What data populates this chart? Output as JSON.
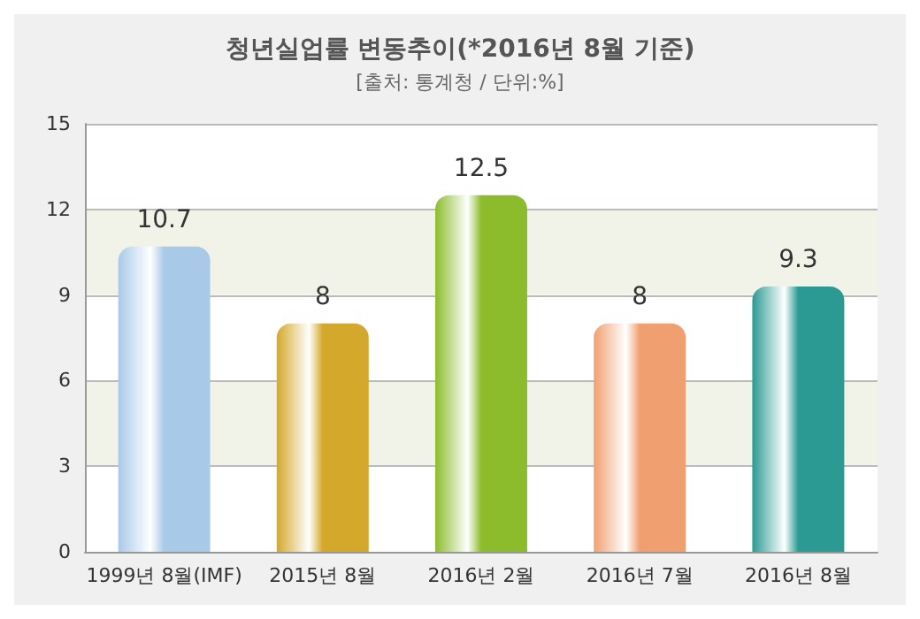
{
  "chart_data": {
    "type": "bar",
    "title": "청년실업률 변동추이(*2016년 8월 기준)",
    "subtitle": "[출처: 통계청 / 단위:%]",
    "categories": [
      "1999년 8월(IMF)",
      "2015년 8월",
      "2016년 2월",
      "2016년 7월",
      "2016년 8월"
    ],
    "values": [
      10.7,
      8,
      12.5,
      8,
      9.3
    ],
    "colors": [
      "#a9c9e9",
      "#d4a82a",
      "#8cbc2c",
      "#f0a070",
      "#2a9a92"
    ],
    "ylim": [
      0,
      15
    ],
    "yticks": [
      0,
      3,
      6,
      9,
      12,
      15
    ],
    "grid": "y",
    "data_labels": true
  }
}
